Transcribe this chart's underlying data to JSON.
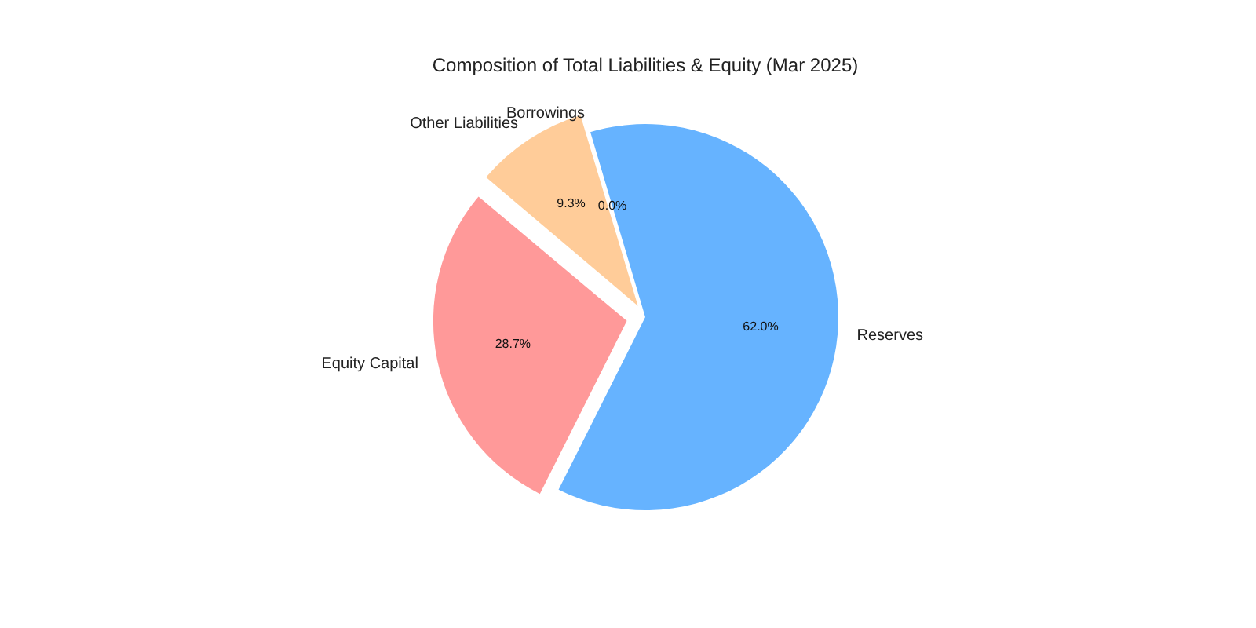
{
  "chart_data": {
    "type": "pie",
    "title": "Composition of Total Liabilities & Equity (Mar 2025)",
    "categories": [
      "Equity Capital",
      "Other Liabilities",
      "Borrowings",
      "Reserves"
    ],
    "values": [
      28.7,
      9.3,
      0.0,
      62.0
    ],
    "colors": [
      "#ff9999",
      "#ffcc99",
      "#99ff99",
      "#66b3ff"
    ],
    "value_labels": [
      "28.7%",
      "9.3%",
      "0.0%",
      "62.0%"
    ]
  }
}
